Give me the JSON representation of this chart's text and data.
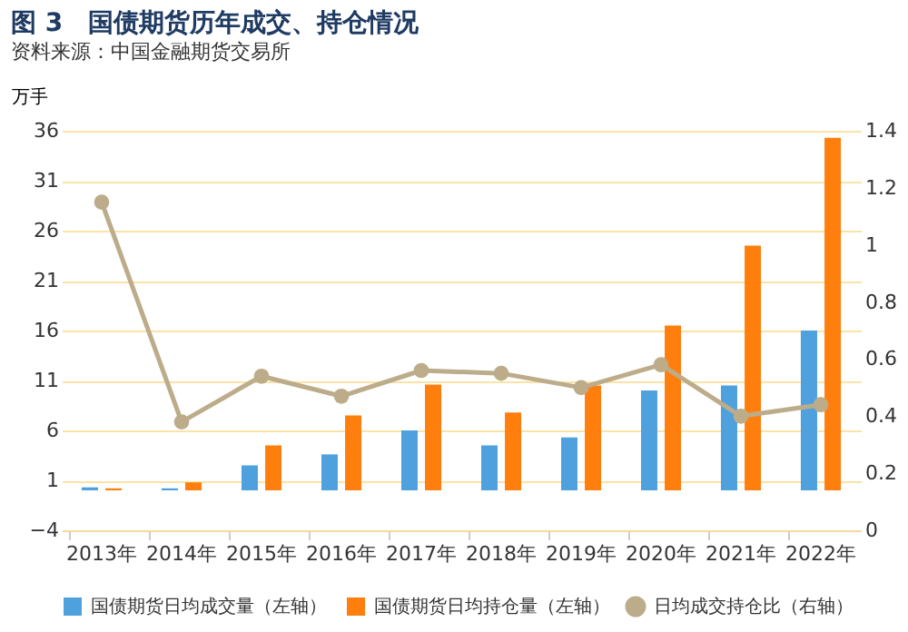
{
  "chart_data": {
    "type": "bar",
    "title": "图 3　国债期货历年成交、持仓情况",
    "ylabel": "万手",
    "categories": [
      "2013年",
      "2014年",
      "2015年",
      "2016年",
      "2017年",
      "2018年",
      "2019年",
      "2020年",
      "2021年",
      "2022年"
    ],
    "series": [
      {
        "name": "国债期货日均成交量（左轴）",
        "color": "#4ea1dc",
        "values": [
          0.3,
          0.2,
          2.5,
          3.6,
          6.0,
          4.5,
          5.3,
          10.0,
          10.5,
          16.0
        ]
      },
      {
        "name": "国债期货日均持仓量（左轴）",
        "color": "#ff7f0e",
        "values": [
          0.2,
          0.8,
          4.5,
          7.5,
          10.6,
          7.8,
          10.5,
          16.5,
          24.5,
          35.3
        ]
      },
      {
        "name": "日均成交持仓比（右轴）",
        "type": "line",
        "axis": "y2",
        "color": "#bcac8a",
        "marker": "circle",
        "values": [
          1.15,
          0.38,
          0.54,
          0.47,
          0.56,
          0.55,
          0.5,
          0.58,
          0.4,
          0.44
        ]
      }
    ],
    "ylim": [
      -4,
      36
    ],
    "yticks": [
      -4,
      1,
      6,
      11,
      16,
      21,
      26,
      31,
      36
    ],
    "y2lim": [
      0,
      1.4
    ],
    "y2ticks": [
      0,
      0.2,
      0.4,
      0.6,
      0.8,
      1.0,
      1.2,
      1.4
    ],
    "grid": "y",
    "legend": "bottom",
    "annotations": [
      "资料来源：中国金融期货交易所"
    ]
  }
}
